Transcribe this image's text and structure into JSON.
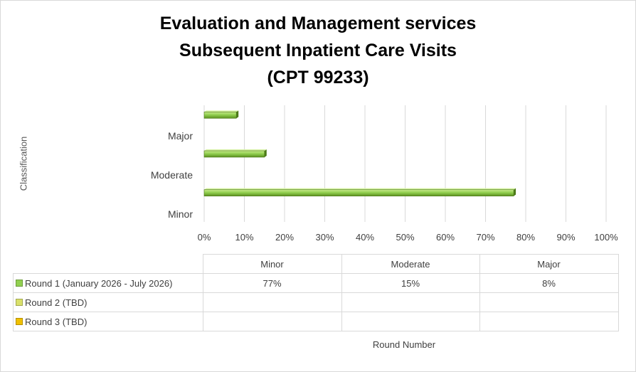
{
  "chart_data": {
    "type": "bar",
    "orientation": "horizontal",
    "title": [
      "Evaluation and Management services",
      "Subsequent Inpatient Care Visits",
      "(CPT 99233)"
    ],
    "ylabel": "Classification",
    "xlabel": "Round Number",
    "categories": [
      "Minor",
      "Moderate",
      "Major"
    ],
    "xlim": [
      0,
      100
    ],
    "xticks": [
      "0%",
      "10%",
      "20%",
      "30%",
      "40%",
      "50%",
      "60%",
      "70%",
      "80%",
      "90%",
      "100%"
    ],
    "grid": true,
    "series": [
      {
        "name": "Round 1 (January 2026 - July 2026)",
        "color": "#92d050",
        "values": [
          77,
          15,
          8
        ],
        "labels": [
          "77%",
          "15%",
          "8%"
        ]
      },
      {
        "name": "Round 2 (TBD)",
        "color": "#d9e06a",
        "values": [
          null,
          null,
          null
        ],
        "labels": [
          "",
          "",
          ""
        ]
      },
      {
        "name": "Round 3 (TBD)",
        "color": "#f0c000",
        "values": [
          null,
          null,
          null
        ],
        "labels": [
          "",
          "",
          ""
        ]
      }
    ],
    "data_table": {
      "columns": [
        "Minor",
        "Moderate",
        "Major"
      ]
    }
  }
}
